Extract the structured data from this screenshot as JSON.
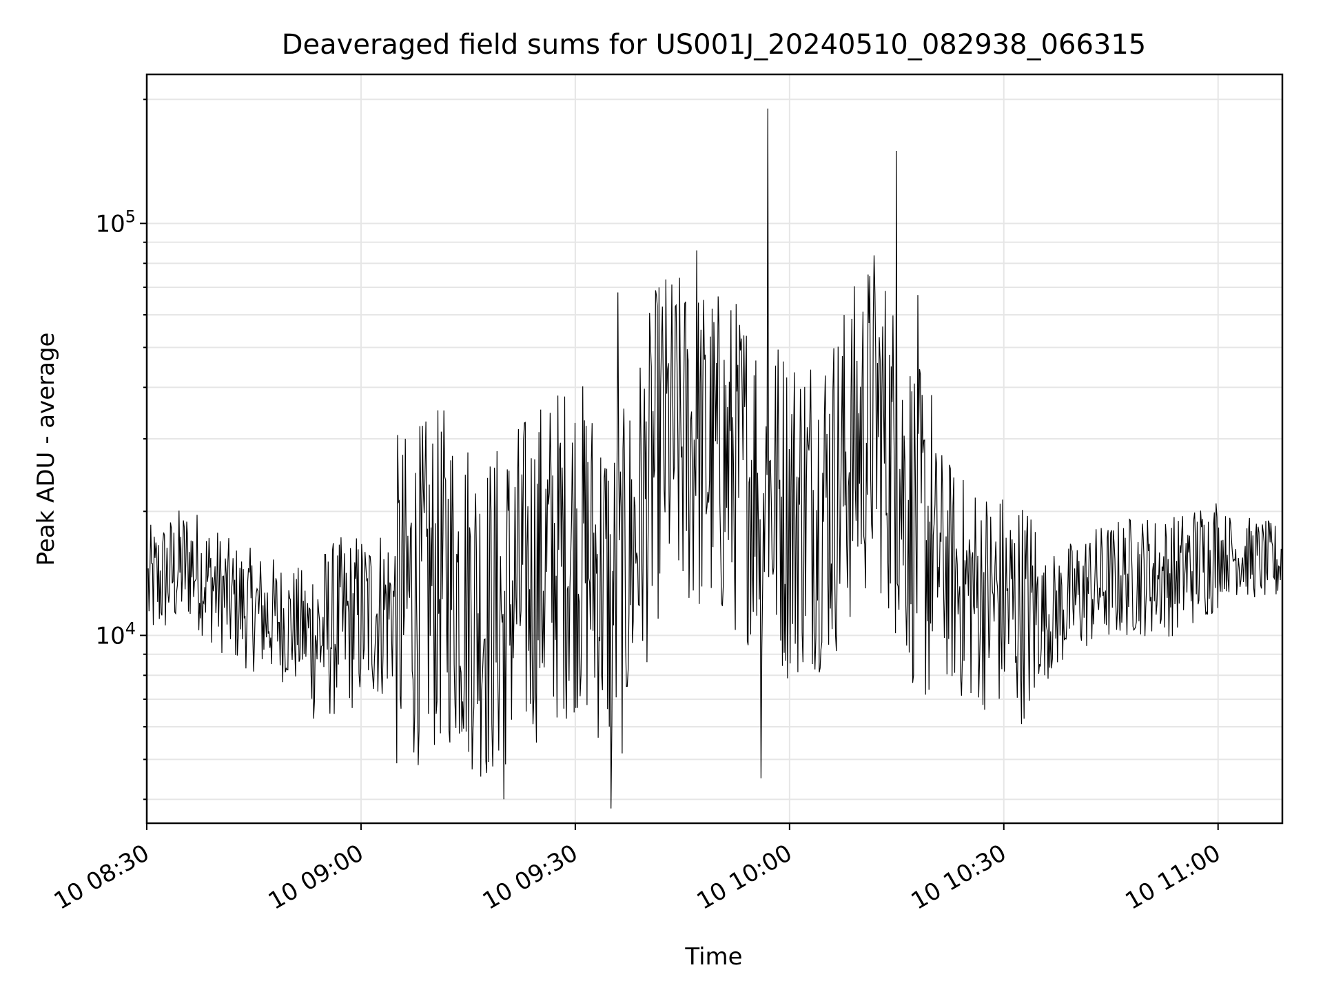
{
  "chart_data": {
    "type": "line",
    "title": "Deaveraged field sums for US001J_20240510_082938_066315",
    "xlabel": "Time",
    "ylabel": "Peak ADU - average",
    "x_start": "2024-05-10 08:30",
    "x_end": "2024-05-10 11:09",
    "xlim": [
      "2024-05-10 08:30",
      "2024-05-10 11:09"
    ],
    "ylim": [
      3500,
      230000
    ],
    "y_scale": "log",
    "x_ticks": [
      "10 08:30",
      "10 09:00",
      "10 09:30",
      "10 10:00",
      "10 10:30",
      "10 11:00"
    ],
    "y_ticks": [
      {
        "value": 10000,
        "base": "10",
        "exp": "4"
      },
      {
        "value": 100000,
        "base": "10",
        "exp": "5"
      }
    ],
    "grid": true,
    "line_color": "#000000",
    "grid_color": "#e6e6e6",
    "series": [
      {
        "name": "",
        "x": [
          "08:30",
          "08:36",
          "08:42",
          "08:48",
          "08:54",
          "09:00",
          "09:06",
          "09:12",
          "09:18",
          "09:24",
          "09:30",
          "09:36",
          "09:42",
          "09:48",
          "09:54",
          "10:00",
          "10:06",
          "10:12",
          "10:18",
          "10:24",
          "10:30",
          "10:36",
          "10:42",
          "10:48",
          "10:54",
          "11:00",
          "11:08"
        ],
        "values": [
          13000,
          15000,
          12000,
          11000,
          10000,
          11000,
          12000,
          14000,
          11000,
          14000,
          17000,
          12000,
          30000,
          28000,
          25000,
          20000,
          22000,
          35000,
          18000,
          13000,
          12000,
          11000,
          13000,
          14000,
          14000,
          16000,
          15000
        ]
      }
    ],
    "spikes": [
      {
        "time": "09:36",
        "value": 68000
      },
      {
        "time": "09:47",
        "value": 86000
      },
      {
        "time": "09:57",
        "value": 190000
      },
      {
        "time": "10:15",
        "value": 150000
      },
      {
        "time": "10:18",
        "value": 67000
      }
    ],
    "min_dips": [
      {
        "time": "09:35",
        "value": 3800
      },
      {
        "time": "09:20",
        "value": 4000
      },
      {
        "time": "09:56",
        "value": 4500
      }
    ]
  }
}
